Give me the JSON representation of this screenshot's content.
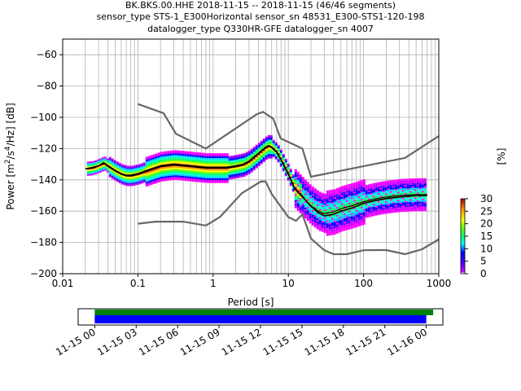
{
  "title_lines": [
    "BK.BKS.00.HHE   2018-11-15 -- 2018-11-15  (46/46 segments)",
    "sensor_type STS-1_E300Horizontal sensor_sn 48531_E300-STS1-120-198",
    "datalogger_type Q330HR-GFE datalogger_sn 4007"
  ],
  "colorbar": {
    "label": "[%]",
    "ticks": [
      "0",
      "5",
      "10",
      "15",
      "20",
      "25",
      "30"
    ],
    "range": [
      0,
      30
    ]
  },
  "chart_data": [
    {
      "type": "heatmap",
      "description_type": "probabilistic power spectral density",
      "xlabel": "Period [s]",
      "ylabel": "Power [m²/s⁴/Hz] [dB]",
      "xscale": "log",
      "xlim": [
        0.01,
        1000
      ],
      "ylim": [
        -200,
        -50
      ],
      "xticks": [
        "0.01",
        "0.1",
        "1",
        "10",
        "100",
        "1000"
      ],
      "yticks": [
        "−200",
        "−180",
        "−160",
        "−140",
        "−120",
        "−100",
        "−80",
        "−60"
      ],
      "grid": true,
      "series": [
        {
          "name": "",
          "role": "high noise model",
          "x": [
            0.1,
            0.22,
            0.32,
            0.8,
            3.8,
            4.6,
            6.3,
            7.9,
            15.4,
            20,
            354.8,
            1000
          ],
          "y": [
            -91.5,
            -97.4,
            -110.5,
            -120,
            -98,
            -96.5,
            -101,
            -113.5,
            -120,
            -138,
            -126,
            -112
          ]
        },
        {
          "name": "",
          "role": "low noise model",
          "x": [
            0.1,
            0.17,
            0.4,
            0.8,
            1.24,
            2.4,
            4.3,
            5,
            6,
            10,
            12.6,
            15.4,
            20,
            30,
            40,
            60,
            100,
            150,
            201,
            354.8,
            600,
            1000
          ],
          "y": [
            -168,
            -166.7,
            -166.7,
            -169.2,
            -163.7,
            -148.6,
            -141.1,
            -141.1,
            -149,
            -163.8,
            -166.2,
            -162.1,
            -177.5,
            -185,
            -187.5,
            -187.5,
            -185,
            -184.9,
            -184.9,
            -187.5,
            -184.4,
            -178
          ]
        },
        {
          "name": "",
          "role": "mode",
          "x": [
            0.02,
            0.025,
            0.03,
            0.035,
            0.04,
            0.05,
            0.06,
            0.07,
            0.08,
            0.1,
            0.15,
            0.2,
            0.3,
            0.5,
            0.8,
            1,
            1.5,
            2,
            2.5,
            3,
            4,
            5,
            5.5,
            6,
            7,
            8,
            10,
            12,
            15,
            20,
            25,
            30,
            40,
            50,
            70,
            100,
            150,
            200,
            300,
            500,
            700
          ],
          "y": [
            -133,
            -132,
            -131,
            -129,
            -131,
            -134,
            -136,
            -137,
            -137,
            -136,
            -133,
            -131,
            -130,
            -131,
            -132,
            -132,
            -132,
            -131,
            -130,
            -128,
            -123,
            -119,
            -118,
            -119,
            -122,
            -127,
            -136,
            -145,
            -150,
            -157,
            -161,
            -163,
            -162,
            -160,
            -158,
            -155,
            -153,
            -152,
            -151,
            -150,
            -150
          ]
        },
        {
          "name": "",
          "role": "mean",
          "x": [
            0.02,
            0.025,
            0.03,
            0.035,
            0.04,
            0.05,
            0.06,
            0.07,
            0.08,
            0.1,
            0.15,
            0.2,
            0.3,
            0.5,
            0.8,
            1,
            1.5,
            2,
            2.5,
            3,
            4,
            5,
            5.5,
            6,
            7,
            8,
            10,
            12,
            15,
            20,
            25,
            30,
            40,
            50,
            70,
            100,
            150,
            200,
            300,
            500,
            700
          ],
          "y": [
            -133,
            -132.5,
            -131,
            -129.5,
            -131.5,
            -134.5,
            -136.5,
            -137.5,
            -137.5,
            -136.5,
            -133.5,
            -131.5,
            -130.5,
            -131.5,
            -132.5,
            -132.5,
            -132.5,
            -131.5,
            -130.5,
            -128.5,
            -123.5,
            -119.5,
            -118.5,
            -119.5,
            -122.5,
            -127.5,
            -136.5,
            -145.5,
            -150.5,
            -156.5,
            -160,
            -161.5,
            -160.5,
            -158.5,
            -156.5,
            -154,
            -152,
            -151,
            -150,
            -149.5,
            -149.5
          ]
        }
      ]
    },
    {
      "type": "bar",
      "description_type": "data availability timeline",
      "xticks": [
        "11-15 00",
        "11-15 03",
        "11-15 06",
        "11-15 09",
        "11-15 12",
        "11-15 15",
        "11-15 18",
        "11-15 21",
        "11-16 00"
      ],
      "xlim_hours": [
        -1.2,
        25.2
      ],
      "series": [
        {
          "name": "",
          "role": "data availability",
          "color": "#008000",
          "start_hour": 0,
          "end_hour": 24.5
        },
        {
          "name": "",
          "role": "segments used",
          "color": "#0000ff",
          "start_hour": 0,
          "end_hour": 24.0
        }
      ]
    }
  ]
}
